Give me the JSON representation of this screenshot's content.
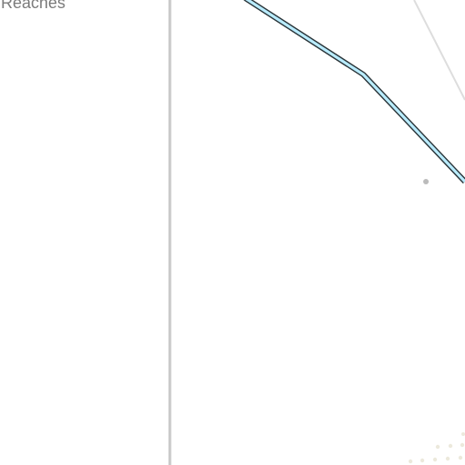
{
  "legend": {
    "label": "Reaches"
  },
  "colors": {
    "background": "#ffffff",
    "reach_fill": "#b9ecff",
    "reach_outline": "#2a3539",
    "divider": "#c8c8c8",
    "thin_road": "#dddddd",
    "marker": "#bbbbbb",
    "dots": "#ece9dc"
  }
}
